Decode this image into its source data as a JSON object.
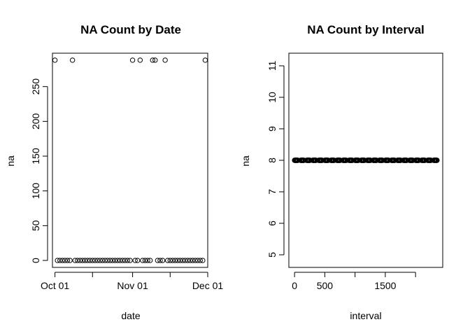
{
  "chart_data": [
    {
      "type": "scatter",
      "title": "NA Count by Date",
      "xlabel": "date",
      "ylabel": "na",
      "xlim": [
        "2012-09-30",
        "2012-12-01"
      ],
      "ylim": [
        -10,
        298
      ],
      "x_ticks": [
        {
          "value": "2012-10-01",
          "label": "Oct 01"
        },
        {
          "value": "2012-10-16",
          "label": ""
        },
        {
          "value": "2012-11-01",
          "label": "Nov 01"
        },
        {
          "value": "2012-11-16",
          "label": ""
        },
        {
          "value": "2012-12-01",
          "label": "Dec 01"
        }
      ],
      "y_ticks": [
        0,
        50,
        100,
        150,
        200,
        250
      ],
      "x": [
        "2012-10-01",
        "2012-10-02",
        "2012-10-03",
        "2012-10-04",
        "2012-10-05",
        "2012-10-06",
        "2012-10-07",
        "2012-10-08",
        "2012-10-09",
        "2012-10-10",
        "2012-10-11",
        "2012-10-12",
        "2012-10-13",
        "2012-10-14",
        "2012-10-15",
        "2012-10-16",
        "2012-10-17",
        "2012-10-18",
        "2012-10-19",
        "2012-10-20",
        "2012-10-21",
        "2012-10-22",
        "2012-10-23",
        "2012-10-24",
        "2012-10-25",
        "2012-10-26",
        "2012-10-27",
        "2012-10-28",
        "2012-10-29",
        "2012-10-30",
        "2012-10-31",
        "2012-11-01",
        "2012-11-02",
        "2012-11-03",
        "2012-11-04",
        "2012-11-05",
        "2012-11-06",
        "2012-11-07",
        "2012-11-08",
        "2012-11-09",
        "2012-11-10",
        "2012-11-11",
        "2012-11-12",
        "2012-11-13",
        "2012-11-14",
        "2012-11-15",
        "2012-11-16",
        "2012-11-17",
        "2012-11-18",
        "2012-11-19",
        "2012-11-20",
        "2012-11-21",
        "2012-11-22",
        "2012-11-23",
        "2012-11-24",
        "2012-11-25",
        "2012-11-26",
        "2012-11-27",
        "2012-11-28",
        "2012-11-29",
        "2012-11-30"
      ],
      "y": [
        288,
        0,
        0,
        0,
        0,
        0,
        0,
        288,
        0,
        0,
        0,
        0,
        0,
        0,
        0,
        0,
        0,
        0,
        0,
        0,
        0,
        0,
        0,
        0,
        0,
        0,
        0,
        0,
        0,
        0,
        0,
        288,
        0,
        0,
        288,
        0,
        0,
        0,
        0,
        288,
        288,
        0,
        0,
        0,
        288,
        0,
        0,
        0,
        0,
        0,
        0,
        0,
        0,
        0,
        0,
        0,
        0,
        0,
        0,
        0,
        288
      ],
      "marker": "open-circle",
      "grid": false,
      "legend": "none"
    },
    {
      "type": "scatter",
      "title": "NA Count by Interval",
      "xlabel": "interval",
      "ylabel": "na",
      "xlim": [
        -94,
        2449
      ],
      "ylim": [
        4.6,
        11.4
      ],
      "x_ticks": [
        {
          "value": 0,
          "label": "0"
        },
        {
          "value": 500,
          "label": "500"
        },
        {
          "value": 1000,
          "label": ""
        },
        {
          "value": 1500,
          "label": "1500"
        },
        {
          "value": 2000,
          "label": ""
        }
      ],
      "y_ticks": [
        5,
        6,
        7,
        8,
        9,
        10,
        11
      ],
      "x_series": {
        "hours": 24,
        "minute_steps": [
          0,
          5,
          10,
          15,
          20,
          25,
          30,
          35,
          40,
          45,
          50,
          55
        ]
      },
      "y_constant": 8,
      "marker": "open-circle",
      "grid": false,
      "legend": "none"
    }
  ]
}
